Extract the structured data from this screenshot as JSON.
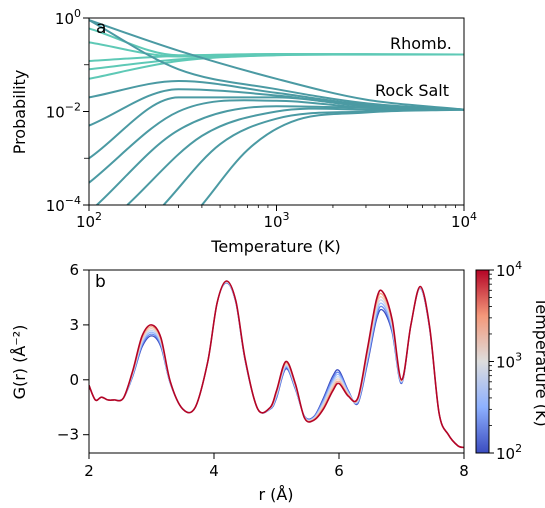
{
  "chart_data": [
    {
      "type": "line",
      "panel": "a",
      "xlabel": "Temperature (K)",
      "ylabel": "Probability",
      "xscale": "log",
      "yscale": "log",
      "xlim": [
        100,
        10000
      ],
      "ylim": [
        0.0001,
        1
      ],
      "xticks": [
        {
          "value": 100,
          "base": "10",
          "exp": "2"
        },
        {
          "value": 1000,
          "base": "10",
          "exp": "3"
        },
        {
          "value": 10000,
          "base": "10",
          "exp": "4"
        }
      ],
      "yticks": [
        {
          "value": 1,
          "base": "10",
          "exp": "0"
        },
        {
          "value": 0.01,
          "base": "10",
          "exp": "−2"
        },
        {
          "value": 0.0001,
          "base": "10",
          "exp": "−4"
        }
      ],
      "annotations": [
        "Rhomb.",
        "Rock Salt"
      ],
      "high_temperature_limits": {
        "Rhomb.": 0.17,
        "Rock Salt": 0.011
      },
      "series": [
        {
          "group": "Rhomb.",
          "color": "#5ec9b6",
          "values": [
            [
              100,
              0.6
            ],
            [
              300,
              0.16
            ],
            [
              1000,
              0.17
            ],
            [
              3000,
              0.168
            ],
            [
              10000,
              0.166
            ]
          ]
        },
        {
          "group": "Rhomb.",
          "color": "#5ec9b6",
          "values": [
            [
              100,
              0.3
            ],
            [
              300,
              0.15
            ],
            [
              1000,
              0.168
            ],
            [
              3000,
              0.167
            ],
            [
              10000,
              0.166
            ]
          ]
        },
        {
          "group": "Rhomb.",
          "color": "#5ec9b6",
          "values": [
            [
              100,
              0.12
            ],
            [
              300,
              0.155
            ],
            [
              1000,
              0.167
            ],
            [
              3000,
              0.167
            ],
            [
              10000,
              0.166
            ]
          ]
        },
        {
          "group": "Rhomb.",
          "color": "#5ec9b6",
          "values": [
            [
              100,
              0.08
            ],
            [
              300,
              0.13
            ],
            [
              1000,
              0.162
            ],
            [
              3000,
              0.166
            ],
            [
              10000,
              0.166
            ]
          ]
        },
        {
          "group": "Rhomb.",
          "color": "#5ec9b6",
          "values": [
            [
              100,
              0.05
            ],
            [
              300,
              0.12
            ],
            [
              1000,
              0.16
            ],
            [
              3000,
              0.165
            ],
            [
              10000,
              0.166
            ]
          ]
        },
        {
          "group": "Rock Salt",
          "color": "#4b9aa3",
          "values": [
            [
              100,
              0.9
            ],
            [
              300,
              0.2
            ],
            [
              1000,
              0.05
            ],
            [
              3000,
              0.018
            ],
            [
              10000,
              0.011
            ]
          ]
        },
        {
          "group": "Rock Salt",
          "color": "#4b9aa3",
          "values": [
            [
              100,
              0.9
            ],
            [
              300,
              0.08
            ],
            [
              1000,
              0.03
            ],
            [
              3000,
              0.015
            ],
            [
              10000,
              0.011
            ]
          ]
        },
        {
          "group": "Rock Salt",
          "color": "#4b9aa3",
          "values": [
            [
              100,
              0.02
            ],
            [
              300,
              0.045
            ],
            [
              1000,
              0.025
            ],
            [
              3000,
              0.014
            ],
            [
              10000,
              0.011
            ]
          ]
        },
        {
          "group": "Rock Salt",
          "color": "#4b9aa3",
          "values": [
            [
              100,
              0.005
            ],
            [
              300,
              0.03
            ],
            [
              1000,
              0.022
            ],
            [
              3000,
              0.013
            ],
            [
              10000,
              0.011
            ]
          ]
        },
        {
          "group": "Rock Salt",
          "color": "#4b9aa3",
          "values": [
            [
              100,
              0.001
            ],
            [
              300,
              0.02
            ],
            [
              1000,
              0.02
            ],
            [
              3000,
              0.013
            ],
            [
              10000,
              0.011
            ]
          ]
        },
        {
          "group": "Rock Salt",
          "color": "#4b9aa3",
          "values": [
            [
              100,
              0.0003
            ],
            [
              300,
              0.01
            ],
            [
              1000,
              0.017
            ],
            [
              3000,
              0.012
            ],
            [
              10000,
              0.011
            ]
          ]
        },
        {
          "group": "Rock Salt",
          "color": "#4b9aa3",
          "values": [
            [
              110,
              0.0001
            ],
            [
              300,
              0.004
            ],
            [
              1000,
              0.013
            ],
            [
              3000,
              0.012
            ],
            [
              10000,
              0.011
            ]
          ]
        },
        {
          "group": "Rock Salt",
          "color": "#4b9aa3",
          "values": [
            [
              160,
              0.0001
            ],
            [
              400,
              0.003
            ],
            [
              1000,
              0.01
            ],
            [
              3000,
              0.011
            ],
            [
              10000,
              0.011
            ]
          ]
        },
        {
          "group": "Rock Salt",
          "color": "#4b9aa3",
          "values": [
            [
              250,
              0.0001
            ],
            [
              500,
              0.002
            ],
            [
              1000,
              0.007
            ],
            [
              3000,
              0.01
            ],
            [
              10000,
              0.011
            ]
          ]
        },
        {
          "group": "Rock Salt",
          "color": "#4b9aa3",
          "values": [
            [
              400,
              0.0001
            ],
            [
              700,
              0.0015
            ],
            [
              1200,
              0.006
            ],
            [
              3000,
              0.0095
            ],
            [
              10000,
              0.011
            ]
          ]
        }
      ]
    },
    {
      "type": "line",
      "panel": "b",
      "xlabel": "r (Å)",
      "ylabel": "G(r) (Å⁻²)",
      "xlim": [
        2,
        8
      ],
      "ylim": [
        -4,
        6
      ],
      "xticks": [
        2,
        4,
        6,
        8
      ],
      "yticks": [
        -3,
        0,
        3,
        6
      ],
      "colorbar": {
        "label": "Temperature (K)",
        "scale": "log",
        "range": [
          100,
          10000
        ],
        "low_color": "#3b4cc0",
        "mid_color": "#dddddd",
        "high_color": "#b40426",
        "ticks": [
          {
            "value": 100,
            "base": "10",
            "exp": "2"
          },
          {
            "value": 1000,
            "base": "10",
            "exp": "3"
          },
          {
            "value": 10000,
            "base": "10",
            "exp": "4"
          }
        ]
      },
      "series": [
        {
          "name": "100 K",
          "color": "#3b4cc0",
          "x": [
            2.0,
            2.1,
            2.2,
            2.3,
            2.4,
            2.55,
            2.7,
            2.85,
            3.0,
            3.15,
            3.3,
            3.5,
            3.7,
            3.9,
            4.05,
            4.2,
            4.35,
            4.5,
            4.7,
            4.9,
            5.0,
            5.15,
            5.3,
            5.45,
            5.6,
            5.75,
            5.9,
            6.0,
            6.15,
            6.3,
            6.45,
            6.6,
            6.7,
            6.85,
            7.0,
            7.15,
            7.3,
            7.45,
            7.6,
            7.75,
            7.9,
            8.0
          ],
          "y": [
            -0.3,
            -1.1,
            -0.95,
            -1.1,
            -1.1,
            -1.0,
            0.2,
            1.8,
            2.4,
            1.8,
            -0.2,
            -1.6,
            -1.5,
            1.0,
            4.2,
            5.3,
            4.2,
            1.0,
            -1.6,
            -1.6,
            -1.0,
            0.6,
            -0.5,
            -2.0,
            -2.0,
            -1.0,
            0.2,
            0.5,
            -0.6,
            -1.3,
            0.8,
            3.3,
            3.8,
            2.6,
            -0.2,
            3.0,
            5.0,
            2.8,
            -1.8,
            -3.0,
            -3.6,
            -3.7
          ]
        },
        {
          "name": "10000 K",
          "color": "#b40426",
          "x": [
            2.0,
            2.1,
            2.2,
            2.3,
            2.4,
            2.55,
            2.7,
            2.85,
            3.0,
            3.15,
            3.3,
            3.5,
            3.7,
            3.9,
            4.05,
            4.2,
            4.35,
            4.5,
            4.7,
            4.9,
            5.0,
            5.15,
            5.3,
            5.45,
            5.6,
            5.75,
            5.9,
            6.0,
            6.15,
            6.3,
            6.45,
            6.6,
            6.7,
            6.85,
            7.0,
            7.15,
            7.3,
            7.45,
            7.6,
            7.75,
            7.9,
            8.0
          ],
          "y": [
            -0.3,
            -1.1,
            -0.95,
            -1.1,
            -1.1,
            -1.0,
            0.5,
            2.4,
            3.0,
            2.3,
            -0.1,
            -1.6,
            -1.5,
            1.0,
            4.2,
            5.4,
            4.3,
            1.1,
            -1.6,
            -1.5,
            -0.6,
            1.0,
            -0.2,
            -2.1,
            -2.2,
            -1.6,
            -0.6,
            -0.2,
            -0.9,
            -1.0,
            1.6,
            4.4,
            4.8,
            3.3,
            0.0,
            3.0,
            5.1,
            2.9,
            -1.8,
            -3.0,
            -3.6,
            -3.7
          ]
        }
      ]
    }
  ]
}
